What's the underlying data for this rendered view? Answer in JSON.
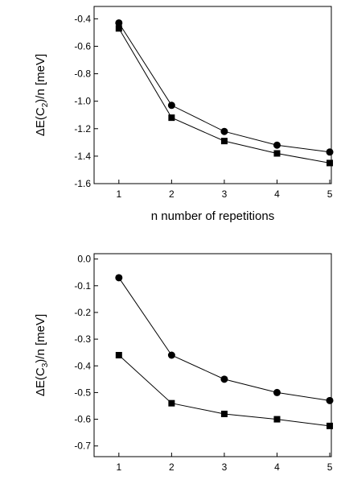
{
  "chart_data": [
    {
      "type": "line",
      "ylabel": {
        "main": "ΔE(C",
        "sub": "2",
        "rest": ")/n  [meV]"
      },
      "xlabel": "n  number of repetitions",
      "x": [
        1,
        2,
        3,
        4,
        5
      ],
      "xlim": [
        0.53,
        5.03
      ],
      "xticks": [
        1,
        2,
        3,
        4,
        5
      ],
      "ylim": [
        -1.6,
        -0.31
      ],
      "yticks": [
        -1.6,
        -1.4,
        -1.2,
        {
          "value": -1,
          "label": "-1.0"
        },
        -0.8,
        -0.6,
        -0.4
      ],
      "series": [
        {
          "marker": "circle",
          "color": "#000000",
          "values": [
            -0.43,
            -1.03,
            -1.22,
            -1.32,
            -1.37
          ]
        },
        {
          "marker": "square",
          "color": "#000000",
          "values": [
            -0.47,
            -1.12,
            -1.29,
            -1.38,
            -1.45
          ]
        }
      ]
    },
    {
      "type": "line",
      "ylabel": {
        "main": "ΔE(C",
        "sub": "3",
        "rest": ")/n  [meV]"
      },
      "xlabel": "n  number of repetitions",
      "x": [
        1,
        2,
        3,
        4,
        5
      ],
      "xlim": [
        0.53,
        5.03
      ],
      "xticks": [
        1,
        2,
        3,
        4,
        5
      ],
      "ylim": [
        -0.74,
        0.02
      ],
      "yticks": [
        -0.7,
        -0.6,
        -0.5,
        -0.4,
        -0.3,
        -0.2,
        -0.1,
        {
          "value": 0,
          "label": "0.0"
        }
      ],
      "series": [
        {
          "marker": "circle",
          "color": "#000000",
          "values": [
            -0.07,
            -0.36,
            -0.45,
            -0.5,
            -0.53
          ]
        },
        {
          "marker": "square",
          "color": "#000000",
          "values": [
            -0.36,
            -0.54,
            -0.58,
            -0.6,
            -0.625
          ]
        }
      ]
    }
  ]
}
